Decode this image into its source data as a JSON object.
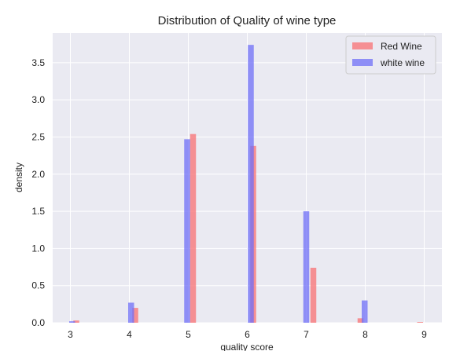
{
  "chart_data": {
    "type": "bar",
    "title": "Distribution of Quality of wine type",
    "xlabel": "quality score",
    "ylabel": "density",
    "xlim": [
      2.7,
      9.3
    ],
    "ylim": [
      0,
      3.9
    ],
    "xticks": [
      "3",
      "4",
      "5",
      "6",
      "7",
      "8",
      "9"
    ],
    "yticks": [
      "0.0",
      "0.5",
      "1.0",
      "1.5",
      "2.0",
      "2.5",
      "3.0",
      "3.5"
    ],
    "grid": true,
    "legend_position": "top-right",
    "series": [
      {
        "name": "Red Wine",
        "color": "#f8787a",
        "opacity": 0.8,
        "x": [
          3.1,
          4.1,
          5.08,
          6.1,
          7.12,
          7.92,
          8.93
        ],
        "values": [
          0.03,
          0.2,
          2.54,
          2.38,
          0.74,
          0.06,
          0.01
        ]
      },
      {
        "name": "white wine",
        "color": "#6f6ff7",
        "opacity": 0.75,
        "x": [
          3.03,
          4.03,
          4.98,
          6.06,
          7.0,
          7.99,
          9.0
        ],
        "values": [
          0.02,
          0.27,
          2.47,
          3.74,
          1.5,
          0.3,
          0.0
        ]
      }
    ]
  }
}
